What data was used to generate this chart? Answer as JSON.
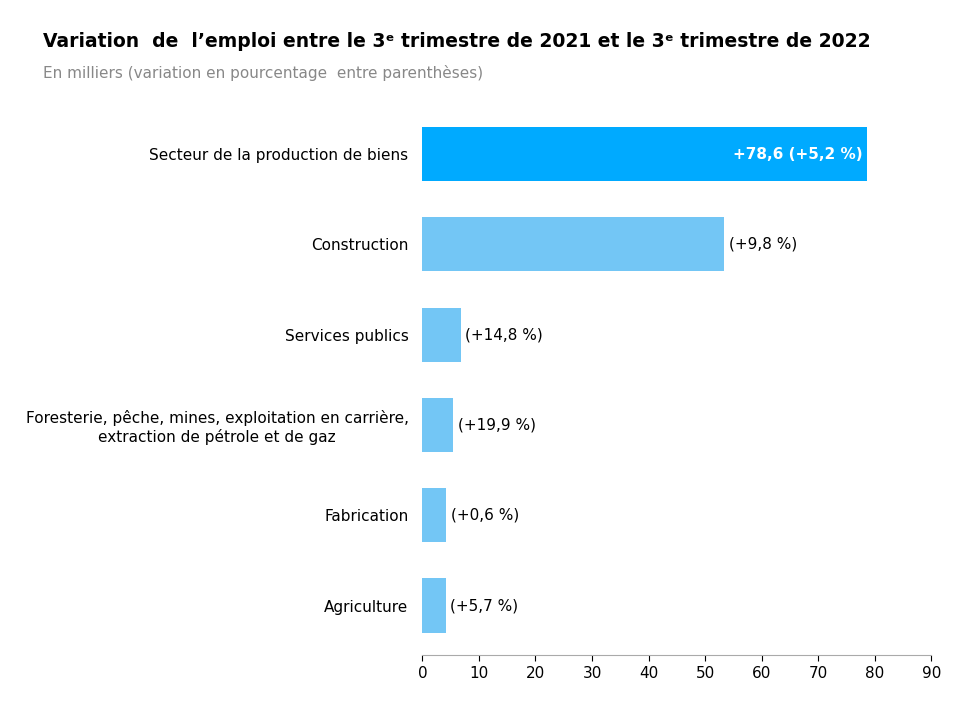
{
  "title_line1": "Variation  de  l’emploi entre le 3ᵉ trimestre de 2021 et le 3ᵉ trimestre de 2022",
  "title_line2": "En milliers (variation en pourcentage entre parenéhèses)",
  "title_line2_text": "En milliers (variation en pourcentage  entre parenthèses)",
  "categories": [
    "Agriculture",
    "Fabrication",
    "Foresterie, pêche, mines, exploitation en carrière,\nextraction de pétrole et de gaz",
    "Services publics",
    "Construction",
    "Secteur de la production de biens"
  ],
  "values": [
    4.1,
    4.2,
    5.5,
    6.8,
    53.4,
    78.6
  ],
  "labels": [
    "(+5,7 %)",
    "(+0,6 %)",
    "(+19,9 %)",
    "(+14,8 %)",
    "(+9,8 %)",
    "+78,6 (+5,2 %)"
  ],
  "bar_colors": [
    "#73c6f5",
    "#73c6f5",
    "#73c6f5",
    "#73c6f5",
    "#73c6f5",
    "#00aaff"
  ],
  "label_colors": [
    "#000000",
    "#000000",
    "#000000",
    "#000000",
    "#000000",
    "#ffffff"
  ],
  "xlim": [
    0,
    90
  ],
  "xticks": [
    0,
    10,
    20,
    30,
    40,
    50,
    60,
    70,
    80,
    90
  ],
  "background_color": "#ffffff",
  "bar_height": 0.6,
  "title_fontsize": 13.5,
  "subtitle_fontsize": 11,
  "label_fontsize": 11,
  "tick_fontsize": 11,
  "ytick_fontsize": 11
}
